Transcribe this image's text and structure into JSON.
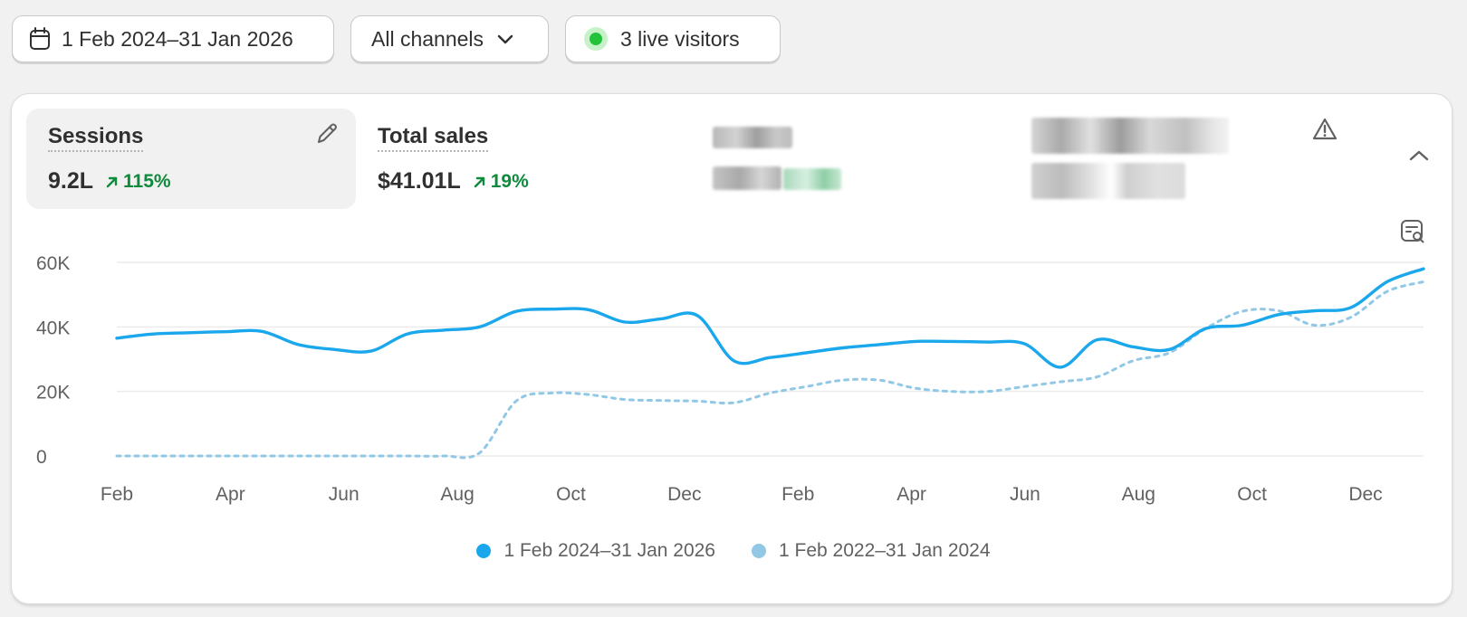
{
  "toolbar": {
    "date_range": "1 Feb 2024–31 Jan 2026",
    "channels": "All channels",
    "live_visitors": "3 live visitors"
  },
  "metrics": [
    {
      "title": "Sessions",
      "value": "9.2L",
      "change": "115%",
      "selected": true
    },
    {
      "title": "Total sales",
      "value": "$41.01L",
      "change": "19%",
      "selected": false
    }
  ],
  "colors": {
    "current": "#1aa7ec",
    "previous": "#91c8e6",
    "positive": "#0f8a3c",
    "live": "#22c33a"
  },
  "icons": {
    "date": "calendar-icon",
    "channels": "chevron-down-icon",
    "edit": "pencil-icon",
    "warning": "warning-icon",
    "collapse": "chevron-up-icon",
    "explore": "explore-report-icon"
  },
  "chart_data": {
    "type": "line",
    "x_ticks": [
      "Feb",
      "Apr",
      "Jun",
      "Aug",
      "Oct",
      "Dec",
      "Feb",
      "Apr",
      "Jun",
      "Aug",
      "Oct",
      "Dec"
    ],
    "y_ticks": [
      "60K",
      "40K",
      "20K",
      "0"
    ],
    "ylim": [
      0,
      60000
    ],
    "grid": true,
    "legend_position": "bottom",
    "series": [
      {
        "name": "1 Feb 2024–31 Jan 2026",
        "style": "solid",
        "values": [
          36500,
          37800,
          38200,
          38500,
          38600,
          34500,
          33000,
          32500,
          37800,
          39000,
          40000,
          44800,
          45500,
          45300,
          41500,
          42500,
          43500,
          29500,
          30500,
          32000,
          33500,
          34500,
          35500,
          35500,
          35300,
          34800,
          27500,
          36000,
          33800,
          33000,
          39500,
          40500,
          43800,
          45000,
          46000,
          54000,
          58000
        ]
      },
      {
        "name": "1 Feb 2022–31 Jan 2024",
        "style": "dashed",
        "values": [
          0,
          0,
          0,
          0,
          0,
          0,
          0,
          0,
          0,
          0,
          1000,
          17000,
          19500,
          19000,
          17500,
          17200,
          17000,
          16500,
          19500,
          21500,
          23500,
          23500,
          21000,
          20000,
          20000,
          21500,
          23000,
          24500,
          29500,
          32000,
          39500,
          44800,
          45000,
          40500,
          43000,
          51000,
          54000
        ]
      }
    ]
  }
}
